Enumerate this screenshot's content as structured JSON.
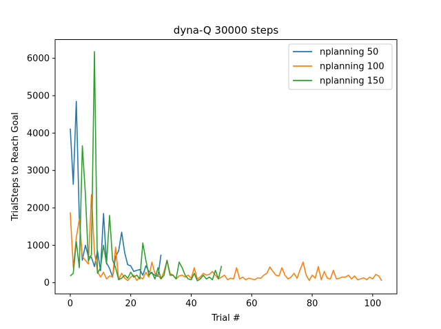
{
  "chart_data": {
    "type": "line",
    "title": "dyna-Q 30000 steps",
    "xlabel": "Trial #",
    "ylabel": "TrialSteps to Reach Goal",
    "xlim": [
      -5,
      108
    ],
    "ylim": [
      -300,
      6500
    ],
    "xticks": [
      0,
      20,
      40,
      60,
      80,
      100
    ],
    "yticks": [
      0,
      1000,
      2000,
      3000,
      4000,
      5000,
      6000
    ],
    "grid": false,
    "legend_position": "top-right",
    "series": [
      {
        "name": "nplanning 50",
        "color": "#1f77b4",
        "x": [
          0,
          1,
          2,
          3,
          4,
          5,
          6,
          7,
          8,
          9,
          10,
          11,
          12,
          13,
          14,
          15,
          16,
          17,
          18,
          19,
          20,
          21,
          22,
          23,
          24,
          25,
          26,
          27,
          28,
          29,
          30
        ],
        "y": [
          4120,
          2630,
          4850,
          1700,
          600,
          1000,
          700,
          680,
          430,
          850,
          320,
          1850,
          530,
          380,
          150,
          700,
          850,
          1350,
          800,
          480,
          450,
          300,
          330,
          350,
          200,
          450,
          300,
          250,
          200,
          170,
          750
        ]
      },
      {
        "name": "nplanning 100",
        "color": "#ff7f0e",
        "x": [
          0,
          1,
          2,
          3,
          4,
          5,
          6,
          7,
          8,
          9,
          10,
          11,
          12,
          13,
          14,
          15,
          16,
          17,
          18,
          19,
          20,
          21,
          22,
          23,
          24,
          25,
          26,
          27,
          28,
          29,
          30,
          31,
          32,
          33,
          34,
          35,
          36,
          37,
          38,
          39,
          40,
          41,
          42,
          43,
          44,
          45,
          46,
          47,
          48,
          49,
          50,
          51,
          52,
          53,
          54,
          55,
          56,
          57,
          58,
          59,
          60,
          61,
          62,
          63,
          64,
          65,
          66,
          67,
          68,
          69,
          70,
          71,
          72,
          73,
          74,
          75,
          76,
          77,
          78,
          79,
          80,
          81,
          82,
          83,
          84,
          85,
          86,
          87,
          88,
          89,
          90,
          91,
          92,
          93,
          94,
          95,
          96,
          97,
          98,
          99,
          100,
          101,
          102,
          103
        ],
        "y": [
          1880,
          400,
          1200,
          1700,
          700,
          600,
          500,
          2350,
          800,
          300,
          150,
          280,
          100,
          180,
          150,
          950,
          80,
          250,
          120,
          60,
          150,
          200,
          60,
          150,
          100,
          280,
          150,
          550,
          250,
          200,
          100,
          300,
          600,
          250,
          200,
          100,
          180,
          200,
          150,
          200,
          120,
          400,
          100,
          150,
          250,
          200,
          220,
          300,
          200,
          100,
          150,
          200,
          80,
          120,
          100,
          400,
          100,
          150,
          80,
          120,
          100,
          80,
          130,
          120,
          200,
          250,
          420,
          300,
          200,
          180,
          400,
          200,
          100,
          150,
          250,
          120,
          350,
          550,
          200,
          60,
          200,
          120,
          430,
          80,
          300,
          120,
          100,
          330,
          100,
          120,
          150,
          150,
          200,
          100,
          180,
          80,
          100,
          130,
          80,
          150,
          100,
          220,
          180,
          50
        ]
      },
      {
        "name": "nplanning 150",
        "color": "#2ca02c",
        "x": [
          0,
          1,
          2,
          3,
          4,
          5,
          6,
          7,
          8,
          9,
          10,
          11,
          12,
          13,
          14,
          15,
          16,
          17,
          18,
          19,
          20,
          21,
          22,
          23,
          24,
          25,
          26,
          27,
          28,
          29,
          30,
          31,
          32,
          33,
          34,
          35,
          36,
          37,
          38,
          39,
          40,
          41,
          42,
          43,
          44,
          45,
          46,
          47,
          48,
          49,
          50
        ],
        "y": [
          180,
          250,
          1100,
          400,
          3660,
          2380,
          580,
          750,
          6180,
          250,
          400,
          1000,
          500,
          1800,
          600,
          400,
          80,
          120,
          200,
          120,
          280,
          150,
          200,
          100,
          1060,
          600,
          200,
          280,
          100,
          400,
          100,
          200,
          600,
          200,
          200,
          100,
          550,
          400,
          200,
          100,
          80,
          250,
          50,
          100,
          200,
          100,
          150,
          80,
          330,
          100,
          450
        ]
      }
    ]
  }
}
